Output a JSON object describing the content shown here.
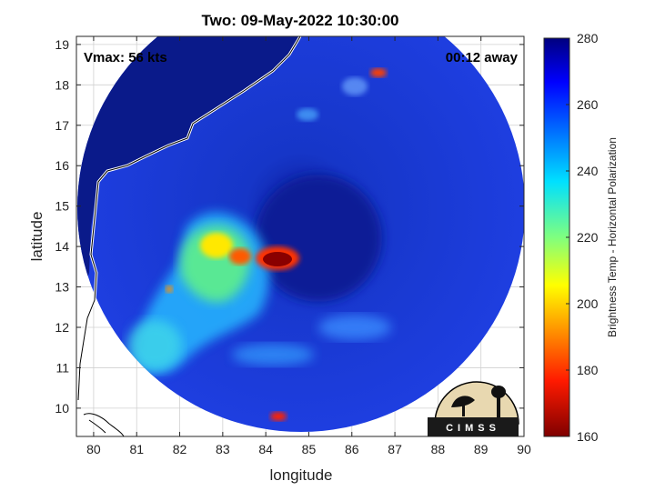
{
  "chart_data": {
    "type": "heatmap",
    "title": "Two: 09-May-2022 10:30:00",
    "xlabel": "longitude",
    "ylabel": "latitude",
    "xlim": [
      79.6,
      90
    ],
    "ylim": [
      9.3,
      19.2
    ],
    "xticks": [
      "80",
      "81",
      "82",
      "83",
      "84",
      "85",
      "86",
      "87",
      "88",
      "89",
      "90"
    ],
    "yticks": [
      "10",
      "11",
      "12",
      "13",
      "14",
      "15",
      "16",
      "17",
      "18",
      "19"
    ],
    "grid": true,
    "annotations": {
      "vmax": "Vmax: 56 kts",
      "time_offset": "00:12 away"
    },
    "swath": {
      "center_lon": 84.8,
      "center_lat": 14.2,
      "radius_deg": 5.2
    },
    "features": [
      {
        "kind": "deep-convection",
        "lon": 84.3,
        "lat": 13.7,
        "value": 165
      },
      {
        "kind": "convection",
        "lon": 83.4,
        "lat": 13.7,
        "value": 185
      },
      {
        "kind": "convection",
        "lon": 86.8,
        "lat": 18.3,
        "value": 185
      },
      {
        "kind": "convection",
        "lon": 84.4,
        "lat": 9.7,
        "value": 175
      },
      {
        "kind": "rainband",
        "lon": 83.0,
        "lat": 14.0,
        "value": 215
      },
      {
        "kind": "rainband",
        "lon": 82.5,
        "lat": 12.8,
        "value": 225
      },
      {
        "kind": "rainband",
        "lon": 81.4,
        "lat": 11.5,
        "value": 232
      }
    ],
    "colorbar": {
      "label": "Brightness Temp - Horizontal Polarization",
      "min": 160,
      "max": 280,
      "ticks": [
        "280",
        "260",
        "240",
        "220",
        "200",
        "180",
        "160"
      ]
    }
  },
  "logo": {
    "text": "CIMSS"
  }
}
